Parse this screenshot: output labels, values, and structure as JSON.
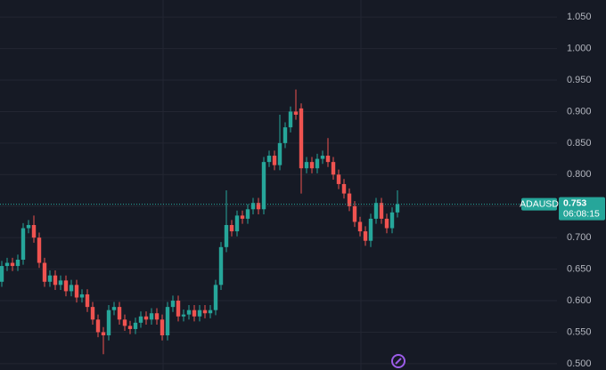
{
  "chart_data": {
    "type": "candlestick",
    "symbol": "ADAUSD",
    "last_price": 0.753,
    "countdown": "06:08:15",
    "up_color": "#26a69a",
    "down_color": "#ef5350",
    "grid": true,
    "ylim": [
      0.49,
      1.077
    ],
    "yticks": [
      {
        "value": 0.5,
        "label": "0.500"
      },
      {
        "value": 0.55,
        "label": "0.550"
      },
      {
        "value": 0.6,
        "label": "0.600"
      },
      {
        "value": 0.65,
        "label": "0.650"
      },
      {
        "value": 0.7,
        "label": "0.700"
      },
      {
        "value": 0.75,
        "label": "0.750"
      },
      {
        "value": 0.8,
        "label": "0.800"
      },
      {
        "value": 0.85,
        "label": "0.850"
      },
      {
        "value": 0.9,
        "label": "0.900"
      },
      {
        "value": 0.95,
        "label": "0.950"
      },
      {
        "value": 1.0,
        "label": "1.000"
      },
      {
        "value": 1.05,
        "label": "1.050"
      }
    ],
    "open": [
      0.63,
      0.655,
      0.66,
      0.655,
      0.665,
      0.715,
      0.72,
      0.7,
      0.66,
      0.63,
      0.64,
      0.625,
      0.632,
      0.615,
      0.625,
      0.605,
      0.61,
      0.59,
      0.57,
      0.55,
      0.545,
      0.585,
      0.59,
      0.57,
      0.56,
      0.555,
      0.565,
      0.575,
      0.57,
      0.58,
      0.57,
      0.545,
      0.59,
      0.6,
      0.575,
      0.578,
      0.585,
      0.575,
      0.585,
      0.58,
      0.585,
      0.625,
      0.685,
      0.72,
      0.71,
      0.735,
      0.73,
      0.745,
      0.755,
      0.745,
      0.82,
      0.83,
      0.815,
      0.85,
      0.875,
      0.9,
      0.905,
      0.81,
      0.82,
      0.81,
      0.825,
      0.83,
      0.82,
      0.8,
      0.785,
      0.77,
      0.75,
      0.725,
      0.71,
      0.695,
      0.73,
      0.755,
      0.73,
      0.715,
      0.74
    ],
    "high": [
      0.663,
      0.668,
      0.668,
      0.673,
      0.723,
      0.728,
      0.735,
      0.708,
      0.668,
      0.648,
      0.648,
      0.64,
      0.64,
      0.633,
      0.633,
      0.618,
      0.618,
      0.598,
      0.578,
      0.558,
      0.593,
      0.598,
      0.598,
      0.578,
      0.568,
      0.573,
      0.583,
      0.583,
      0.588,
      0.588,
      0.578,
      0.598,
      0.608,
      0.608,
      0.586,
      0.593,
      0.593,
      0.593,
      0.593,
      0.593,
      0.633,
      0.693,
      0.775,
      0.728,
      0.743,
      0.743,
      0.753,
      0.763,
      0.763,
      0.828,
      0.838,
      0.838,
      0.895,
      0.883,
      0.908,
      0.935,
      0.913,
      0.828,
      0.828,
      0.833,
      0.838,
      0.858,
      0.828,
      0.808,
      0.793,
      0.778,
      0.758,
      0.733,
      0.718,
      0.738,
      0.763,
      0.763,
      0.738,
      0.748,
      0.775
    ],
    "low": [
      0.622,
      0.647,
      0.647,
      0.647,
      0.657,
      0.707,
      0.692,
      0.652,
      0.622,
      0.622,
      0.617,
      0.617,
      0.607,
      0.607,
      0.597,
      0.597,
      0.582,
      0.562,
      0.542,
      0.515,
      0.537,
      0.577,
      0.562,
      0.552,
      0.547,
      0.547,
      0.557,
      0.562,
      0.562,
      0.562,
      0.537,
      0.537,
      0.582,
      0.567,
      0.567,
      0.57,
      0.567,
      0.567,
      0.572,
      0.572,
      0.577,
      0.617,
      0.677,
      0.702,
      0.702,
      0.722,
      0.722,
      0.737,
      0.737,
      0.737,
      0.812,
      0.807,
      0.807,
      0.842,
      0.867,
      0.887,
      0.77,
      0.802,
      0.802,
      0.802,
      0.817,
      0.812,
      0.792,
      0.777,
      0.762,
      0.742,
      0.717,
      0.702,
      0.687,
      0.685,
      0.722,
      0.722,
      0.707,
      0.707,
      0.732
    ],
    "close": [
      0.655,
      0.66,
      0.655,
      0.665,
      0.715,
      0.72,
      0.7,
      0.66,
      0.63,
      0.64,
      0.625,
      0.632,
      0.615,
      0.625,
      0.605,
      0.61,
      0.59,
      0.57,
      0.55,
      0.545,
      0.585,
      0.59,
      0.57,
      0.56,
      0.555,
      0.565,
      0.575,
      0.57,
      0.58,
      0.57,
      0.545,
      0.59,
      0.6,
      0.575,
      0.578,
      0.585,
      0.575,
      0.585,
      0.58,
      0.585,
      0.625,
      0.685,
      0.72,
      0.71,
      0.735,
      0.73,
      0.745,
      0.755,
      0.745,
      0.82,
      0.83,
      0.815,
      0.85,
      0.875,
      0.9,
      0.895,
      0.81,
      0.82,
      0.81,
      0.825,
      0.83,
      0.82,
      0.8,
      0.785,
      0.77,
      0.75,
      0.725,
      0.71,
      0.695,
      0.73,
      0.755,
      0.73,
      0.715,
      0.74,
      0.753
    ]
  }
}
